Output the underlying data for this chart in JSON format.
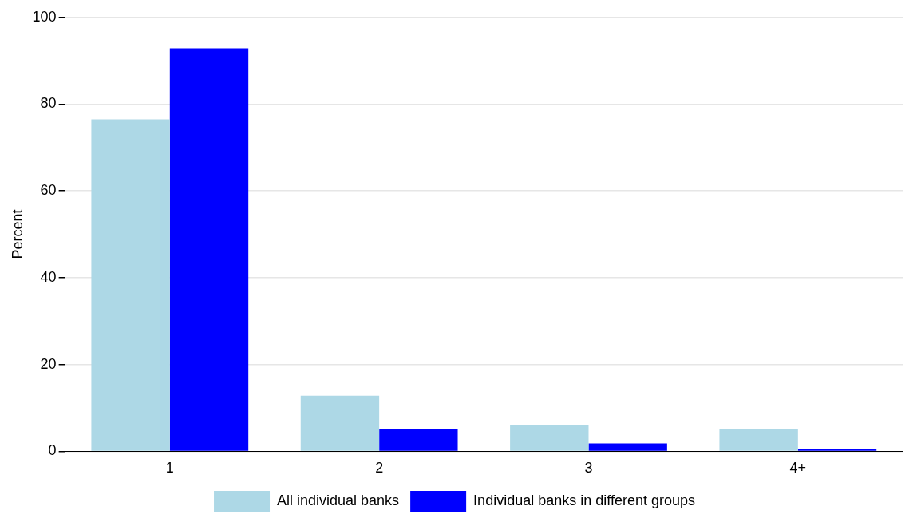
{
  "chart_data": {
    "type": "bar",
    "ylabel": "Percent",
    "categories": [
      "1",
      "2",
      "3",
      "4+"
    ],
    "series": [
      {
        "name": "All individual banks",
        "color": "#add8e6",
        "values": [
          76.5,
          12.8,
          6.1,
          5.1
        ]
      },
      {
        "name": "Individual banks in different groups",
        "color": "#0000ff",
        "values": [
          92.9,
          5.1,
          1.8,
          0.6
        ]
      }
    ],
    "ylim": [
      0,
      100
    ],
    "yticks": [
      0,
      20,
      40,
      60,
      80,
      100
    ],
    "grid": "y",
    "legend": "bottom"
  }
}
